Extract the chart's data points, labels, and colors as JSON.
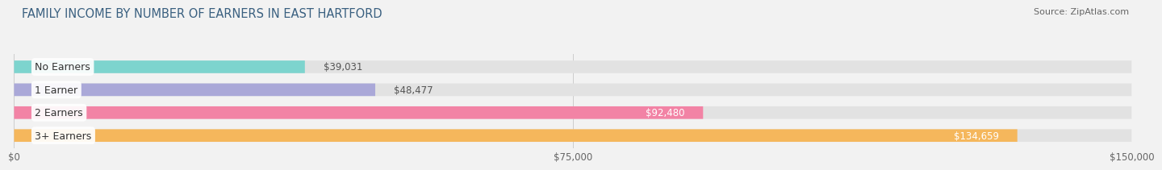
{
  "title": "FAMILY INCOME BY NUMBER OF EARNERS IN EAST HARTFORD",
  "source": "Source: ZipAtlas.com",
  "categories": [
    "No Earners",
    "1 Earner",
    "2 Earners",
    "3+ Earners"
  ],
  "values": [
    39031,
    48477,
    92480,
    134659
  ],
  "bar_colors": [
    "#7dd4ce",
    "#aaa8d8",
    "#f283a5",
    "#f5b75c"
  ],
  "value_colors": [
    "#555555",
    "#555555",
    "#ffffff",
    "#ffffff"
  ],
  "max_value": 150000,
  "xtick_values": [
    0,
    75000,
    150000
  ],
  "xtick_labels": [
    "$0",
    "$75,000",
    "$150,000"
  ],
  "background_color": "#f2f2f2",
  "bar_bg_color": "#e2e2e2",
  "title_fontsize": 10.5,
  "label_fontsize": 9,
  "value_fontsize": 8.5,
  "source_fontsize": 8
}
